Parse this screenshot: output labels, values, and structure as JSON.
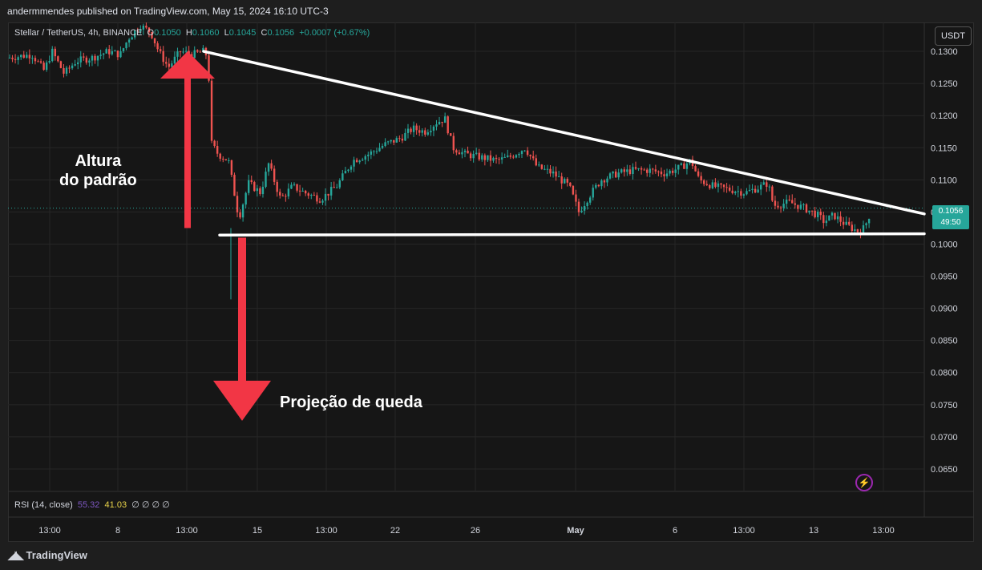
{
  "header": {
    "published": "andermmendes published on TradingView.com, May 15, 2024 16:10 UTC-3"
  },
  "legend": {
    "symbol": "Stellar / TetherUS, 4h, BINANCE",
    "o_label": "O",
    "o": "0.1050",
    "h_label": "H",
    "h": "0.1060",
    "l_label": "L",
    "l": "0.1045",
    "c_label": "C",
    "c": "0.1056",
    "change": "+0.0007 (+0.67%)"
  },
  "currency_button": "USDT",
  "price_tag": {
    "price": "0.1056",
    "countdown": "49:50"
  },
  "annotations": {
    "pattern_height": [
      "Altura",
      "do padrão"
    ],
    "projection": "Projeção de queda"
  },
  "rsi": {
    "label": "RSI (14, close)",
    "value1": "55.32",
    "value2": "41.03",
    "rest": "∅ ∅ ∅ ∅"
  },
  "footer": {
    "brand": "TradingView",
    "logo_icon": "tradingview-logo-icon"
  },
  "colors": {
    "up": "#26a69a",
    "down": "#ef5350",
    "arrow": "#f23645",
    "line": "#ffffff"
  },
  "chart_data": {
    "type": "candlestick",
    "symbol": "Stellar / TetherUS",
    "timeframe": "4h",
    "exchange": "BINANCE",
    "y_ticks": [
      "0.1300",
      "0.1250",
      "0.1200",
      "0.1150",
      "0.1100",
      "0.1050",
      "0.1000",
      "0.0950",
      "0.0900",
      "0.0850",
      "0.0800",
      "0.0750",
      "0.0700",
      "0.0650"
    ],
    "ylim": [
      0.0615,
      0.1345
    ],
    "x_ticks": [
      "13:00",
      "8",
      "13:00",
      "15",
      "13:00",
      "22",
      "26",
      "May",
      "6",
      "13:00",
      "13",
      "13:00"
    ],
    "current_price": 0.1056,
    "price_path": [
      [
        0,
        0.129
      ],
      [
        30,
        0.1295
      ],
      [
        45,
        0.127
      ],
      [
        55,
        0.13
      ],
      [
        70,
        0.1265
      ],
      [
        85,
        0.1285
      ],
      [
        105,
        0.129
      ],
      [
        125,
        0.13
      ],
      [
        140,
        0.1295
      ],
      [
        150,
        0.132
      ],
      [
        165,
        0.134
      ],
      [
        178,
        0.133
      ],
      [
        188,
        0.13
      ],
      [
        200,
        0.1275
      ],
      [
        215,
        0.13
      ],
      [
        230,
        0.1295
      ],
      [
        244,
        0.13
      ],
      [
        250,
        0.129
      ],
      [
        252,
        0.116
      ],
      [
        262,
        0.114
      ],
      [
        275,
        0.113
      ],
      [
        288,
        0.104
      ],
      [
        300,
        0.1095
      ],
      [
        315,
        0.108
      ],
      [
        325,
        0.1125
      ],
      [
        340,
        0.107
      ],
      [
        355,
        0.109
      ],
      [
        370,
        0.108
      ],
      [
        390,
        0.107
      ],
      [
        410,
        0.109
      ],
      [
        430,
        0.113
      ],
      [
        450,
        0.114
      ],
      [
        470,
        0.1155
      ],
      [
        490,
        0.1165
      ],
      [
        505,
        0.118
      ],
      [
        520,
        0.1175
      ],
      [
        535,
        0.119
      ],
      [
        545,
        0.1195
      ],
      [
        555,
        0.115
      ],
      [
        570,
        0.114
      ],
      [
        590,
        0.1135
      ],
      [
        610,
        0.113
      ],
      [
        625,
        0.1135
      ],
      [
        645,
        0.115
      ],
      [
        660,
        0.112
      ],
      [
        680,
        0.111
      ],
      [
        700,
        0.109
      ],
      [
        712,
        0.105
      ],
      [
        725,
        0.1075
      ],
      [
        740,
        0.11
      ],
      [
        760,
        0.111
      ],
      [
        780,
        0.1115
      ],
      [
        800,
        0.1115
      ],
      [
        820,
        0.111
      ],
      [
        840,
        0.112
      ],
      [
        852,
        0.113
      ],
      [
        862,
        0.11
      ],
      [
        880,
        0.109
      ],
      [
        900,
        0.1085
      ],
      [
        920,
        0.108
      ],
      [
        940,
        0.109
      ],
      [
        948,
        0.1095
      ],
      [
        955,
        0.106
      ],
      [
        975,
        0.1065
      ],
      [
        995,
        0.1055
      ],
      [
        1010,
        0.1045
      ],
      [
        1018,
        0.1035
      ],
      [
        1030,
        0.1045
      ],
      [
        1045,
        0.103
      ],
      [
        1060,
        0.102
      ],
      [
        1068,
        0.1025
      ],
      [
        1078,
        0.1056
      ]
    ],
    "trendlines": [
      {
        "name": "descending-resistance",
        "from": [
          244,
          0.13
        ],
        "to": [
          1143,
          0.1047
        ]
      },
      {
        "name": "horizontal-support",
        "from": [
          264,
          0.1014
        ],
        "to": [
          1143,
          0.1016
        ]
      }
    ],
    "arrows": [
      {
        "name": "pattern-height-arrow",
        "x": 224,
        "from_price": 0.1025,
        "to_price": 0.13,
        "direction": "up"
      },
      {
        "name": "projection-arrow",
        "x": 292,
        "from_price": 0.101,
        "to_price": 0.0725,
        "direction": "down"
      }
    ]
  }
}
